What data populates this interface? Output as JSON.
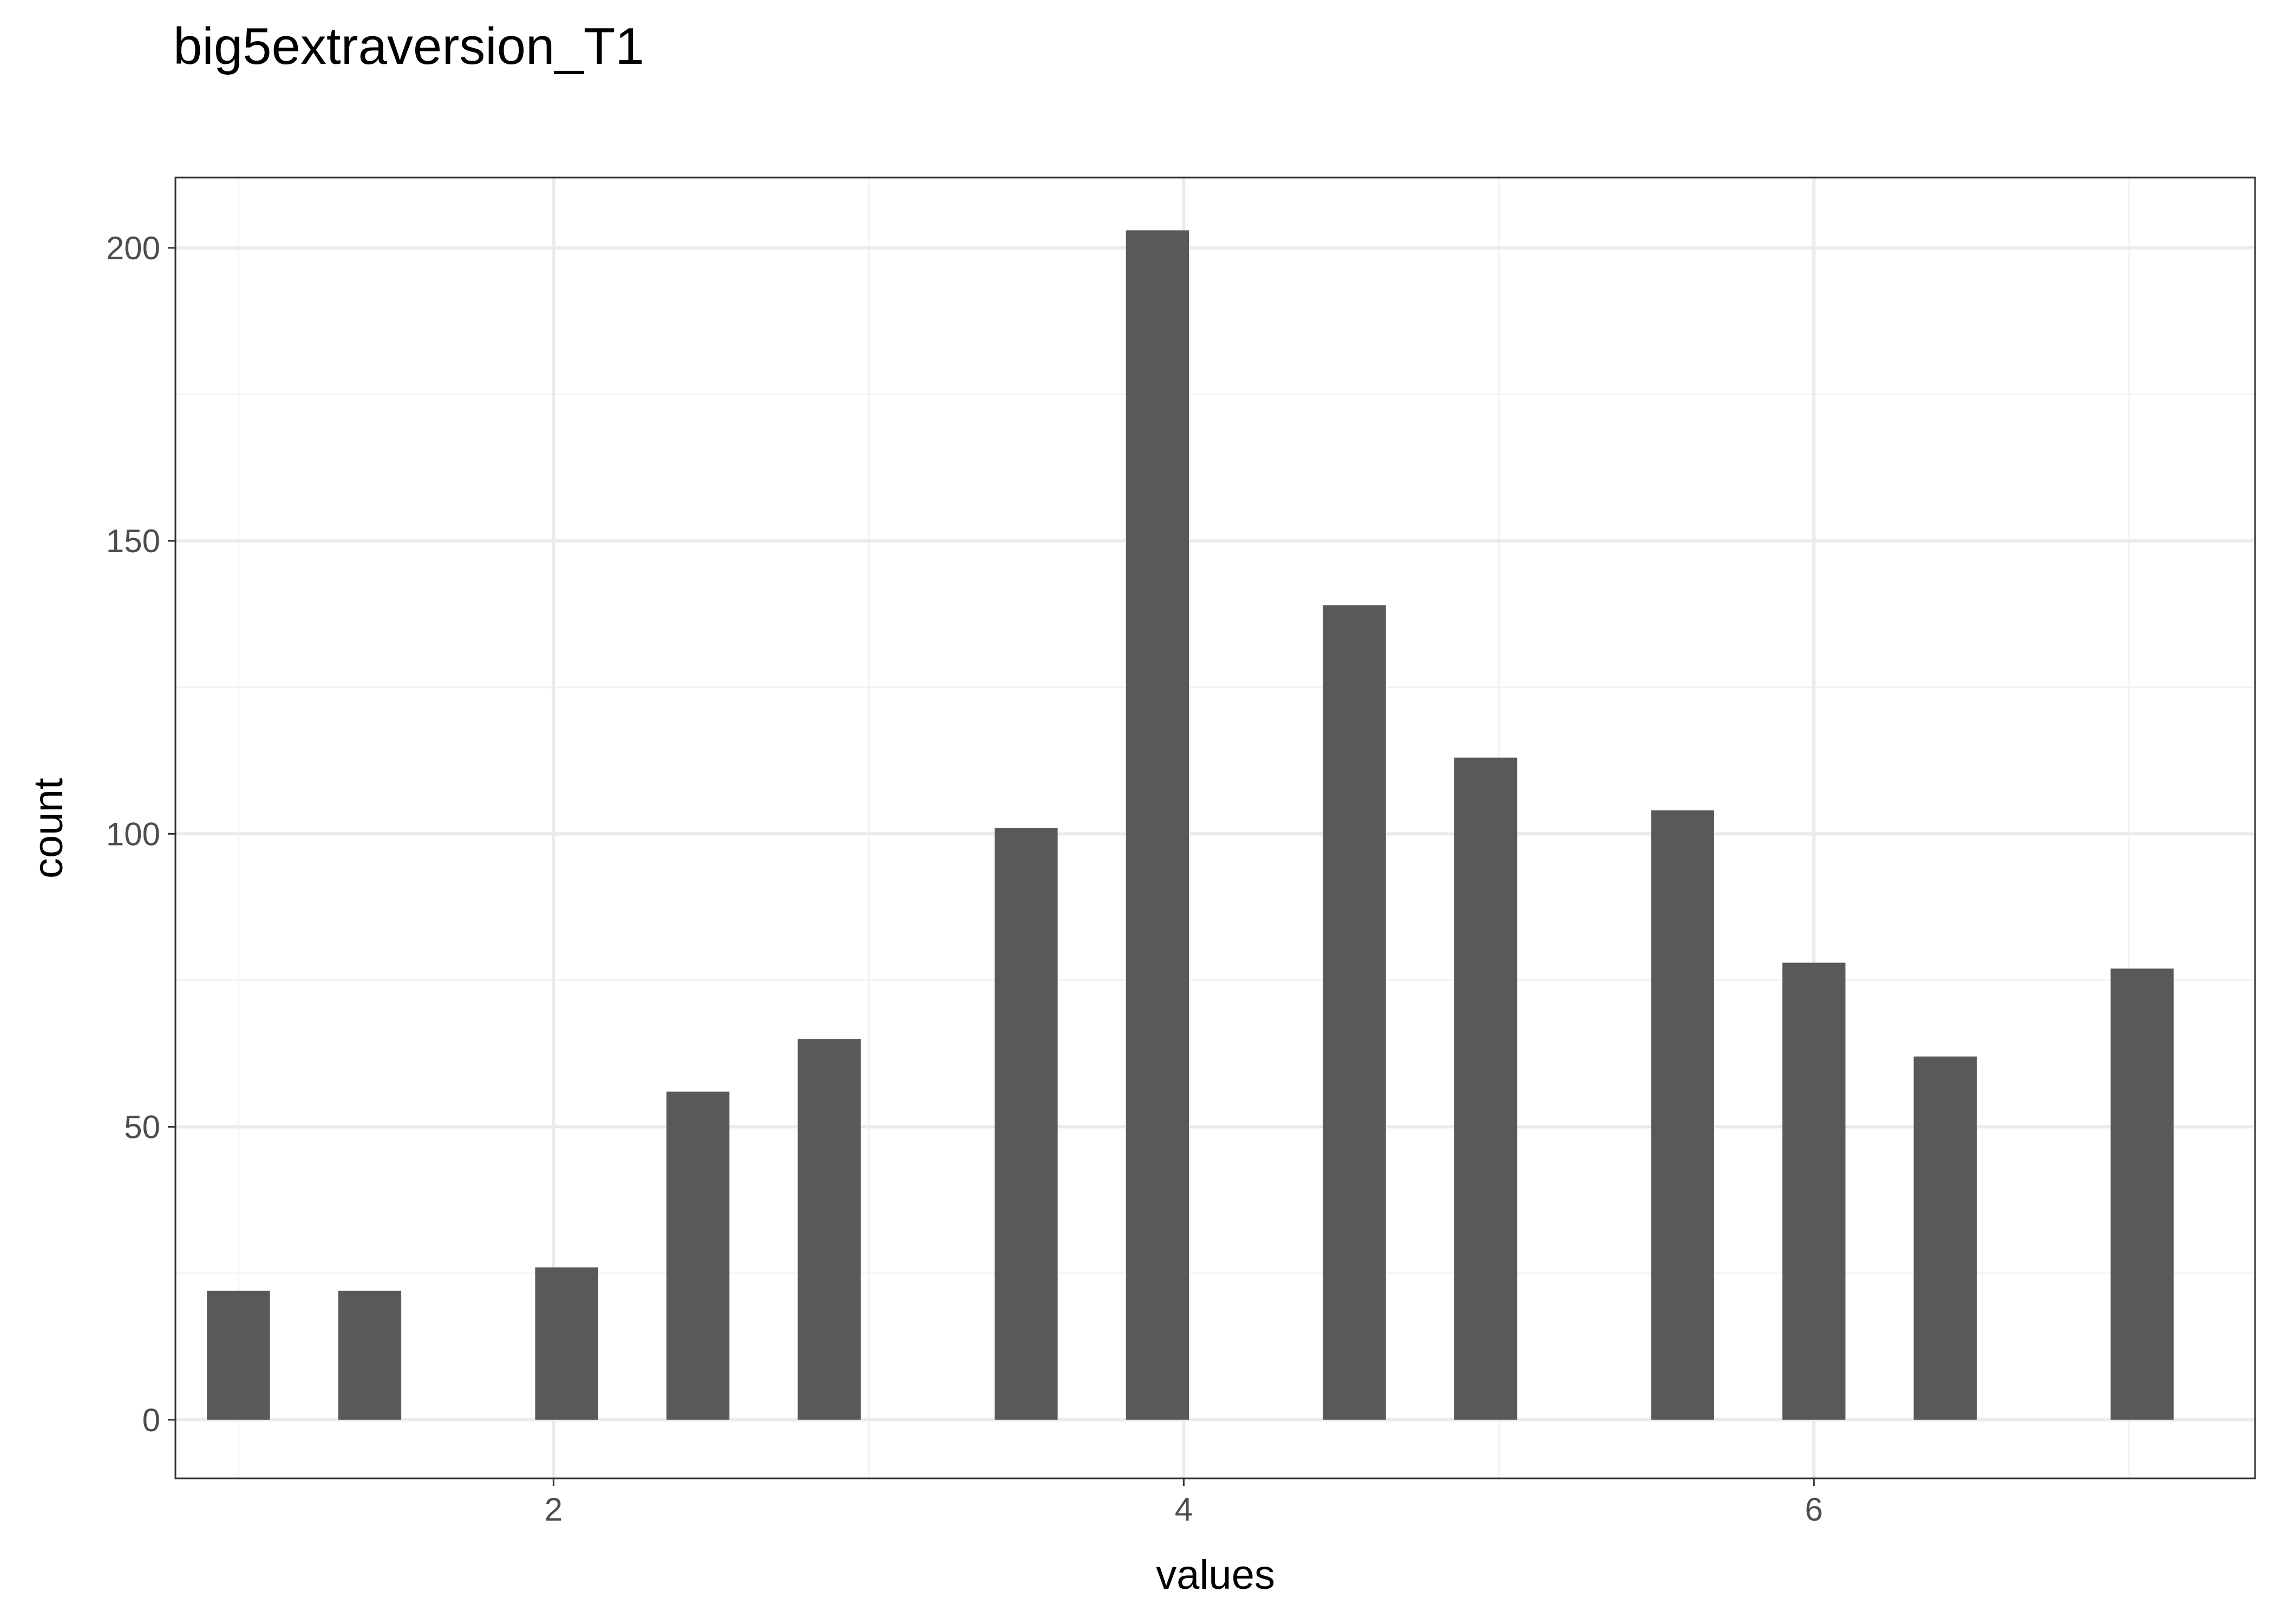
{
  "chart_data": {
    "type": "bar",
    "title": "big5extraversion_T1",
    "xlabel": "values",
    "ylabel": "count",
    "xlim": [
      0.8,
      7.4
    ],
    "ylim": [
      -10,
      212
    ],
    "x_ticks": [
      2,
      4,
      6
    ],
    "y_ticks": [
      0,
      50,
      100,
      150,
      200
    ],
    "grid": true,
    "bar_width": 0.2,
    "colors": {
      "bar": "#595959",
      "grid_major": "#ebebeb",
      "grid_minor": "#f2f2f2",
      "panel_border": "#333333",
      "tick_label": "#4d4d4d"
    },
    "bars": [
      {
        "x": 1.0,
        "count": 22
      },
      {
        "x": 1.4167,
        "count": 22
      },
      {
        "x": 2.0417,
        "count": 26
      },
      {
        "x": 2.4583,
        "count": 56
      },
      {
        "x": 2.875,
        "count": 65
      },
      {
        "x": 3.5,
        "count": 101
      },
      {
        "x": 3.9167,
        "count": 203
      },
      {
        "x": 4.5417,
        "count": 139
      },
      {
        "x": 4.9583,
        "count": 113
      },
      {
        "x": 5.5833,
        "count": 104
      },
      {
        "x": 6.0,
        "count": 78
      },
      {
        "x": 6.4167,
        "count": 62
      },
      {
        "x": 7.0417,
        "count": 77
      }
    ]
  }
}
